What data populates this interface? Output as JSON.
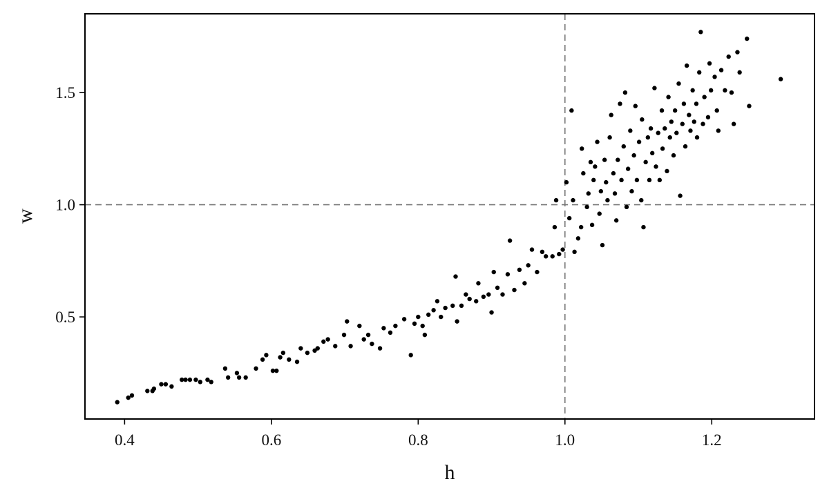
{
  "chart_data": {
    "type": "scatter",
    "title": "",
    "xlabel": "h",
    "ylabel": "w",
    "xlim": [
      0.346,
      1.34
    ],
    "ylim": [
      0.045,
      1.851
    ],
    "xticks": [
      "0.4",
      "0.6",
      "0.8",
      "1.0",
      "1.2"
    ],
    "yticks": [
      "0.5",
      "1.0",
      "1.5"
    ],
    "grid": false,
    "reference_lines": {
      "x": 1.0,
      "y": 1.0,
      "style": "dashed",
      "color": "#777777"
    },
    "point_color": "#000000",
    "points": [
      [
        0.39,
        0.12
      ],
      [
        0.405,
        0.14
      ],
      [
        0.41,
        0.15
      ],
      [
        0.431,
        0.17
      ],
      [
        0.438,
        0.17
      ],
      [
        0.44,
        0.18
      ],
      [
        0.45,
        0.2
      ],
      [
        0.456,
        0.2
      ],
      [
        0.464,
        0.19
      ],
      [
        0.478,
        0.22
      ],
      [
        0.483,
        0.22
      ],
      [
        0.489,
        0.22
      ],
      [
        0.497,
        0.22
      ],
      [
        0.503,
        0.21
      ],
      [
        0.513,
        0.22
      ],
      [
        0.518,
        0.21
      ],
      [
        0.537,
        0.27
      ],
      [
        0.541,
        0.23
      ],
      [
        0.553,
        0.25
      ],
      [
        0.556,
        0.23
      ],
      [
        0.565,
        0.23
      ],
      [
        0.579,
        0.27
      ],
      [
        0.588,
        0.31
      ],
      [
        0.593,
        0.33
      ],
      [
        0.602,
        0.26
      ],
      [
        0.607,
        0.26
      ],
      [
        0.612,
        0.32
      ],
      [
        0.616,
        0.34
      ],
      [
        0.624,
        0.31
      ],
      [
        0.635,
        0.3
      ],
      [
        0.64,
        0.36
      ],
      [
        0.649,
        0.34
      ],
      [
        0.659,
        0.35
      ],
      [
        0.663,
        0.36
      ],
      [
        0.671,
        0.39
      ],
      [
        0.677,
        0.4
      ],
      [
        0.687,
        0.37
      ],
      [
        0.699,
        0.42
      ],
      [
        0.703,
        0.48
      ],
      [
        0.708,
        0.37
      ],
      [
        0.72,
        0.46
      ],
      [
        0.726,
        0.4
      ],
      [
        0.732,
        0.42
      ],
      [
        0.737,
        0.38
      ],
      [
        0.748,
        0.36
      ],
      [
        0.753,
        0.45
      ],
      [
        0.762,
        0.43
      ],
      [
        0.769,
        0.46
      ],
      [
        0.781,
        0.49
      ],
      [
        0.79,
        0.33
      ],
      [
        0.795,
        0.47
      ],
      [
        0.8,
        0.5
      ],
      [
        0.806,
        0.46
      ],
      [
        0.809,
        0.42
      ],
      [
        0.814,
        0.51
      ],
      [
        0.821,
        0.53
      ],
      [
        0.826,
        0.57
      ],
      [
        0.831,
        0.5
      ],
      [
        0.837,
        0.54
      ],
      [
        0.847,
        0.55
      ],
      [
        0.851,
        0.68
      ],
      [
        0.853,
        0.48
      ],
      [
        0.859,
        0.55
      ],
      [
        0.865,
        0.6
      ],
      [
        0.87,
        0.58
      ],
      [
        0.879,
        0.57
      ],
      [
        0.882,
        0.65
      ],
      [
        0.889,
        0.59
      ],
      [
        0.896,
        0.6
      ],
      [
        0.9,
        0.52
      ],
      [
        0.903,
        0.7
      ],
      [
        0.908,
        0.63
      ],
      [
        0.915,
        0.6
      ],
      [
        0.922,
        0.69
      ],
      [
        0.925,
        0.84
      ],
      [
        0.931,
        0.62
      ],
      [
        0.938,
        0.71
      ],
      [
        0.945,
        0.65
      ],
      [
        0.95,
        0.73
      ],
      [
        0.955,
        0.8
      ],
      [
        0.962,
        0.7
      ],
      [
        0.969,
        0.79
      ],
      [
        0.974,
        0.77
      ],
      [
        0.983,
        0.77
      ],
      [
        0.986,
        0.9
      ],
      [
        0.988,
        1.02
      ],
      [
        0.992,
        0.78
      ],
      [
        0.997,
        0.8
      ],
      [
        1.002,
        1.1
      ],
      [
        1.006,
        0.94
      ],
      [
        1.009,
        1.42
      ],
      [
        1.011,
        1.02
      ],
      [
        1.013,
        0.79
      ],
      [
        1.018,
        0.85
      ],
      [
        1.022,
        0.9
      ],
      [
        1.023,
        1.25
      ],
      [
        1.025,
        1.14
      ],
      [
        1.03,
        0.99
      ],
      [
        1.032,
        1.05
      ],
      [
        1.035,
        1.19
      ],
      [
        1.037,
        0.91
      ],
      [
        1.039,
        1.11
      ],
      [
        1.041,
        1.17
      ],
      [
        1.044,
        1.28
      ],
      [
        1.047,
        0.96
      ],
      [
        1.049,
        1.06
      ],
      [
        1.051,
        0.82
      ],
      [
        1.054,
        1.2
      ],
      [
        1.056,
        1.1
      ],
      [
        1.058,
        1.02
      ],
      [
        1.061,
        1.3
      ],
      [
        1.063,
        1.4
      ],
      [
        1.066,
        1.14
      ],
      [
        1.068,
        1.05
      ],
      [
        1.07,
        0.93
      ],
      [
        1.072,
        1.2
      ],
      [
        1.075,
        1.45
      ],
      [
        1.077,
        1.11
      ],
      [
        1.08,
        1.26
      ],
      [
        1.082,
        1.5
      ],
      [
        1.084,
        0.99
      ],
      [
        1.086,
        1.16
      ],
      [
        1.089,
        1.33
      ],
      [
        1.091,
        1.06
      ],
      [
        1.094,
        1.22
      ],
      [
        1.096,
        1.44
      ],
      [
        1.098,
        1.11
      ],
      [
        1.101,
        1.28
      ],
      [
        1.104,
        1.02
      ],
      [
        1.105,
        1.38
      ],
      [
        1.107,
        0.9
      ],
      [
        1.11,
        1.19
      ],
      [
        1.113,
        1.3
      ],
      [
        1.115,
        1.11
      ],
      [
        1.117,
        1.34
      ],
      [
        1.119,
        1.23
      ],
      [
        1.122,
        1.52
      ],
      [
        1.124,
        1.17
      ],
      [
        1.127,
        1.32
      ],
      [
        1.129,
        1.11
      ],
      [
        1.132,
        1.42
      ],
      [
        1.133,
        1.25
      ],
      [
        1.136,
        1.34
      ],
      [
        1.139,
        1.15
      ],
      [
        1.141,
        1.48
      ],
      [
        1.143,
        1.3
      ],
      [
        1.145,
        1.37
      ],
      [
        1.148,
        1.22
      ],
      [
        1.15,
        1.42
      ],
      [
        1.152,
        1.32
      ],
      [
        1.155,
        1.54
      ],
      [
        1.157,
        1.04
      ],
      [
        1.16,
        1.36
      ],
      [
        1.162,
        1.45
      ],
      [
        1.164,
        1.26
      ],
      [
        1.166,
        1.62
      ],
      [
        1.169,
        1.4
      ],
      [
        1.171,
        1.33
      ],
      [
        1.174,
        1.51
      ],
      [
        1.176,
        1.37
      ],
      [
        1.179,
        1.45
      ],
      [
        1.18,
        1.3
      ],
      [
        1.183,
        1.59
      ],
      [
        1.185,
        1.77
      ],
      [
        1.188,
        1.36
      ],
      [
        1.19,
        1.48
      ],
      [
        1.195,
        1.39
      ],
      [
        1.197,
        1.63
      ],
      [
        1.199,
        1.51
      ],
      [
        1.204,
        1.57
      ],
      [
        1.207,
        1.42
      ],
      [
        1.209,
        1.33
      ],
      [
        1.213,
        1.6
      ],
      [
        1.218,
        1.51
      ],
      [
        1.223,
        1.66
      ],
      [
        1.227,
        1.5
      ],
      [
        1.23,
        1.36
      ],
      [
        1.235,
        1.68
      ],
      [
        1.238,
        1.59
      ],
      [
        1.248,
        1.74
      ],
      [
        1.251,
        1.44
      ],
      [
        1.294,
        1.56
      ]
    ]
  }
}
